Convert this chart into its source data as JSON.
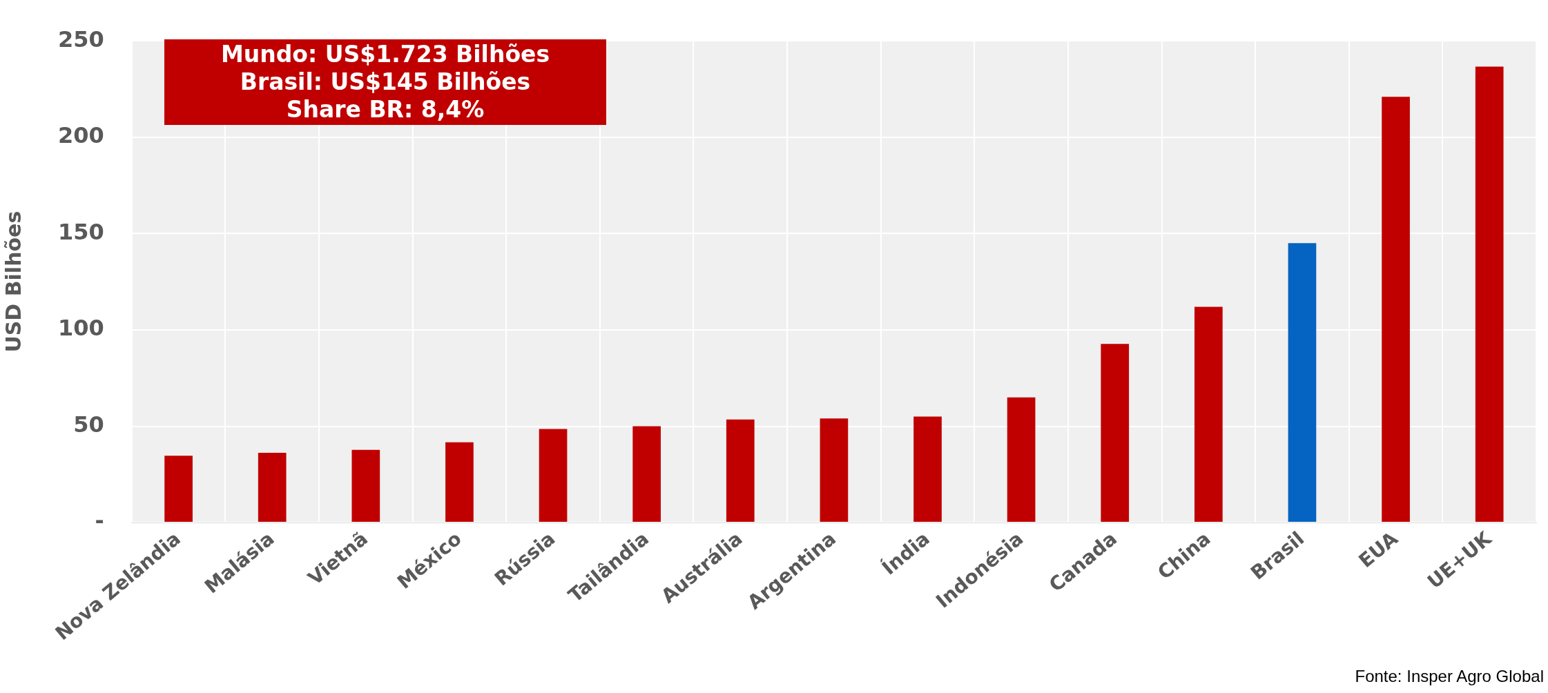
{
  "chart_data": {
    "type": "bar",
    "ylabel": "USD Bilhões",
    "categories": [
      "Nova Zelândia",
      "Malásia",
      "Vietnã",
      "México",
      "Rússia",
      "Tailândia",
      "Austrália",
      "Argentina",
      "Índia",
      "Indonésia",
      "Canada",
      "China",
      "Brasil",
      "EUA",
      "UE+UK"
    ],
    "values": [
      34.7,
      36.2,
      37.7,
      41.7,
      48.6,
      50,
      53.5,
      54,
      55,
      65,
      92.7,
      112,
      145,
      221,
      236.6
    ],
    "colors": [
      "#c00000",
      "#c00000",
      "#c00000",
      "#c00000",
      "#c00000",
      "#c00000",
      "#c00000",
      "#c00000",
      "#c00000",
      "#c00000",
      "#c00000",
      "#c00000",
      "#0563c1",
      "#c00000",
      "#c00000"
    ],
    "ylim": [
      0,
      250
    ],
    "yticks": [
      {
        "value": 0,
        "label": "-"
      },
      50,
      100,
      150,
      200,
      250
    ],
    "grid": true,
    "annotations": [
      "Mundo: US$1.723 Bilhões\nBrasil: US$145 Bilhões\nShare BR: 8,4%",
      "Fonte: Insper Agro Global"
    ]
  }
}
